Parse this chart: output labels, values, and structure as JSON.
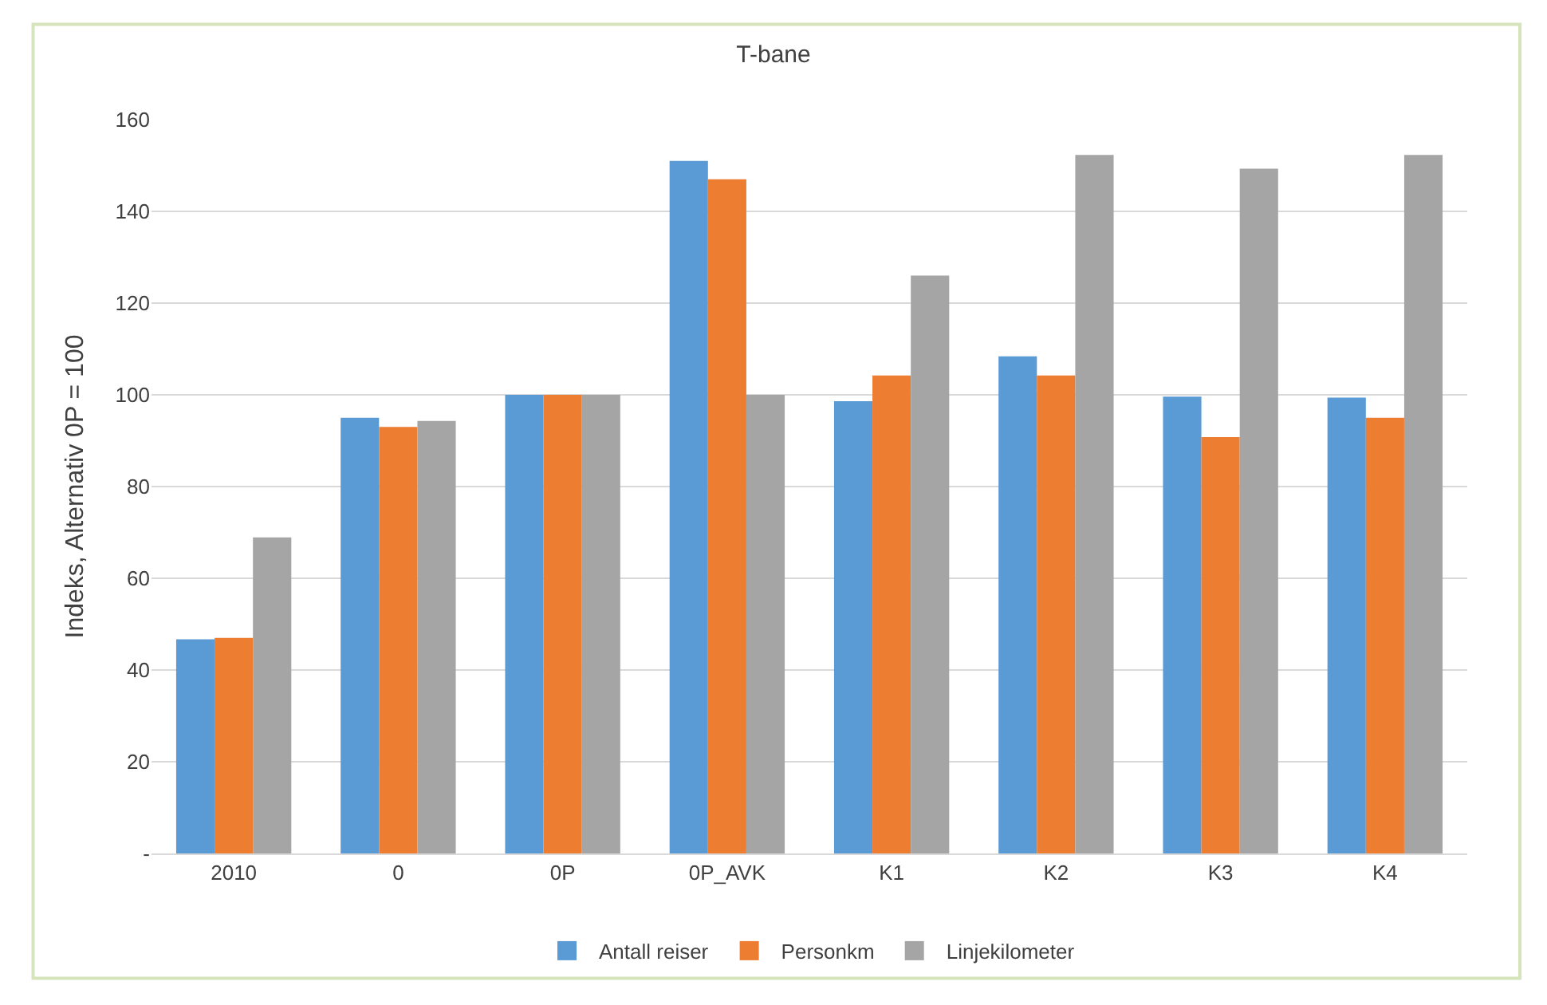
{
  "chart_data": {
    "type": "bar",
    "title": "T-bane",
    "ylabel": "Indeks, Alternativ 0P = 100",
    "categories": [
      "2010",
      "0",
      "0P",
      "0P_AVK",
      "K1",
      "K2",
      "K3",
      "K4"
    ],
    "series": [
      {
        "name": "Antall reiser",
        "color": "#5b9bd5",
        "values": [
          46.7,
          95,
          100,
          151,
          98.6,
          108.4,
          99.6,
          99.4
        ]
      },
      {
        "name": "Personkm",
        "color": "#ed7d31",
        "values": [
          47,
          93,
          100,
          147,
          104.2,
          104.2,
          90.8,
          95
        ]
      },
      {
        "name": "Linjekilometer",
        "color": "#a5a5a5",
        "values": [
          68.9,
          94.3,
          100,
          100,
          126,
          152.3,
          149.3,
          152.3
        ]
      }
    ],
    "ylim": [
      0,
      160
    ],
    "yticks": [
      {
        "value": 0,
        "label": "-"
      },
      20,
      40,
      60,
      80,
      100,
      120,
      140,
      160
    ],
    "grid": "y",
    "legend": "bottom"
  }
}
